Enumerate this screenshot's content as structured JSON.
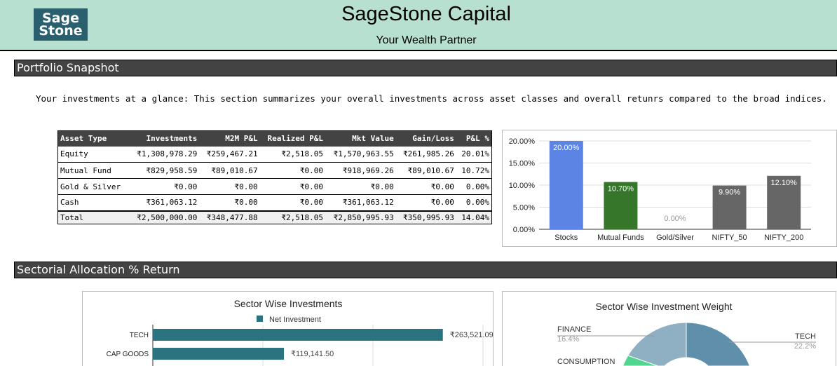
{
  "header": {
    "logo_text_1": "Sage",
    "logo_text_2": "Stone",
    "title": "SageStone Capital",
    "subtitle": "Your Wealth Partner"
  },
  "sections": {
    "portfolio": "Portfolio Snapshot",
    "sectorial": "Sectorial Allocation % Return"
  },
  "portfolio": {
    "description": "Your investments at a glance: This section summarizes your overall investments across asset classes and overall retunrs compared to the broad indices.",
    "table": {
      "headers": [
        "Asset Type",
        "Investments",
        "M2M P&L",
        "Realized P&L",
        "Mkt Value",
        "Gain/Loss",
        "P&L %"
      ],
      "rows": [
        [
          "Equity",
          "₹1,308,978.29",
          "₹259,467.21",
          "₹2,518.05",
          "₹1,570,963.55",
          "₹261,985.26",
          "20.01%"
        ],
        [
          "Mutual Fund",
          "₹829,958.59",
          "₹89,010.67",
          "₹0.00",
          "₹918,969.26",
          "₹89,010.67",
          "10.72%"
        ],
        [
          "Gold & Silver",
          "₹0.00",
          "₹0.00",
          "₹0.00",
          "₹0.00",
          "₹0.00",
          "0.00%"
        ],
        [
          "Cash",
          "₹361,063.12",
          "₹0.00",
          "₹0.00",
          "₹361,063.12",
          "₹0.00",
          "0.00%"
        ]
      ],
      "total": [
        "Total",
        "₹2,500,000.00",
        "₹348,477.88",
        "₹2,518.05",
        "₹2,850,995.93",
        "₹350,995.93",
        "14.04%"
      ]
    }
  },
  "chart_data": [
    {
      "type": "bar",
      "categories": [
        "Stocks",
        "Mutual Funds",
        "Gold/Silver",
        "NIFTY_50",
        "NIFTY_200"
      ],
      "values": [
        20.0,
        10.7,
        0.0,
        9.9,
        12.1
      ],
      "labels": [
        "20.00%",
        "10.70%",
        "0.00%",
        "9.90%",
        "12.10%"
      ],
      "colors": [
        "#5b84e4",
        "#36762b",
        "#666666",
        "#666666",
        "#666666"
      ],
      "yticks": [
        "0.00%",
        "5.00%",
        "10.00%",
        "15.00%",
        "20.00%"
      ],
      "ylim": [
        0,
        20
      ],
      "grid": true,
      "title": "",
      "xlabel": "",
      "ylabel": ""
    },
    {
      "type": "bar",
      "orientation": "horizontal",
      "title": "Sector Wise Investments",
      "legend": "top",
      "series": [
        {
          "name": "Net Investment",
          "color": "#2c7380"
        }
      ],
      "categories": [
        "TECH",
        "CAP GOODS"
      ],
      "values": [
        263521.09,
        119141.5
      ],
      "labels": [
        "₹263,521.09",
        "₹119,141.50"
      ],
      "xlim": [
        0,
        300000
      ],
      "grid": true
    },
    {
      "type": "pie",
      "donut": true,
      "title": "Sector Wise Investment Weight",
      "slices": [
        {
          "label": "TECH",
          "value": 22.2,
          "text": "22.2%",
          "color": "#5f8fab"
        },
        {
          "label": "FINANCE",
          "value": 16.4,
          "text": "16.4%",
          "color": "#8fb0c3"
        },
        {
          "label": "CONSUMPTION",
          "color": "#52d68f"
        }
      ]
    }
  ]
}
